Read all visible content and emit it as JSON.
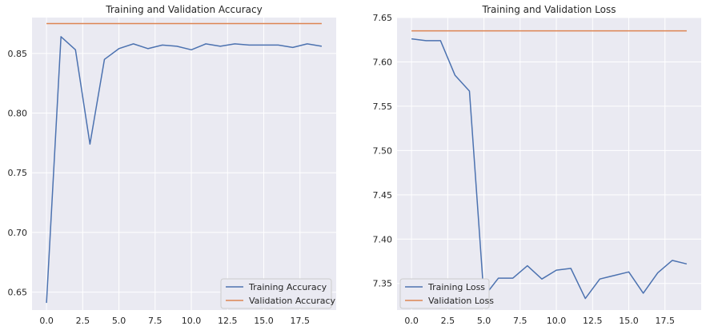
{
  "chart_data": [
    {
      "type": "line",
      "title": "Training and Validation Accuracy",
      "xlabel": "",
      "ylabel": "",
      "xlim": [
        -1,
        20
      ],
      "ylim": [
        0.635,
        0.88
      ],
      "xticks": [
        0,
        2.5,
        5,
        7.5,
        10,
        12.5,
        15,
        17.5
      ],
      "xtick_labels": [
        "0.0",
        "2.5",
        "5.0",
        "7.5",
        "10.0",
        "12.5",
        "15.0",
        "17.5"
      ],
      "yticks": [
        0.65,
        0.7,
        0.75,
        0.8,
        0.85
      ],
      "ytick_labels": [
        "0.65",
        "0.70",
        "0.75",
        "0.80",
        "0.85"
      ],
      "grid": true,
      "legend": "lower-right",
      "series": [
        {
          "name": "Training Accuracy",
          "color": "#4c72b0",
          "x": [
            0,
            1,
            2,
            3,
            4,
            5,
            6,
            7,
            8,
            9,
            10,
            11,
            12,
            13,
            14,
            15,
            16,
            17,
            18,
            19
          ],
          "y": [
            0.641,
            0.864,
            0.853,
            0.774,
            0.845,
            0.854,
            0.858,
            0.854,
            0.857,
            0.856,
            0.853,
            0.858,
            0.856,
            0.858,
            0.857,
            0.857,
            0.857,
            0.855,
            0.858,
            0.856
          ]
        },
        {
          "name": "Validation Accuracy",
          "color": "#dd8452",
          "x": [
            0,
            1,
            2,
            3,
            4,
            5,
            6,
            7,
            8,
            9,
            10,
            11,
            12,
            13,
            14,
            15,
            16,
            17,
            18,
            19
          ],
          "y": [
            0.875,
            0.875,
            0.875,
            0.875,
            0.875,
            0.875,
            0.875,
            0.875,
            0.875,
            0.875,
            0.875,
            0.875,
            0.875,
            0.875,
            0.875,
            0.875,
            0.875,
            0.875,
            0.875,
            0.875
          ]
        }
      ]
    },
    {
      "type": "line",
      "title": "Training and Validation Loss",
      "xlabel": "",
      "ylabel": "",
      "xlim": [
        -1,
        20
      ],
      "ylim": [
        7.32,
        7.65
      ],
      "xticks": [
        0,
        2.5,
        5,
        7.5,
        10,
        12.5,
        15,
        17.5
      ],
      "xtick_labels": [
        "0.0",
        "2.5",
        "5.0",
        "7.5",
        "10.0",
        "12.5",
        "15.0",
        "17.5"
      ],
      "yticks": [
        7.35,
        7.4,
        7.45,
        7.5,
        7.55,
        7.6,
        7.65
      ],
      "ytick_labels": [
        "7.35",
        "7.40",
        "7.45",
        "7.50",
        "7.55",
        "7.60",
        "7.65"
      ],
      "grid": true,
      "legend": "lower-left",
      "series": [
        {
          "name": "Training Loss",
          "color": "#4c72b0",
          "x": [
            0,
            1,
            2,
            3,
            4,
            5,
            6,
            7,
            8,
            9,
            10,
            11,
            12,
            13,
            14,
            15,
            16,
            17,
            18,
            19
          ],
          "y": [
            7.626,
            7.624,
            7.624,
            7.585,
            7.567,
            7.335,
            7.356,
            7.356,
            7.37,
            7.355,
            7.365,
            7.367,
            7.333,
            7.355,
            7.359,
            7.363,
            7.339,
            7.362,
            7.376,
            7.372
          ]
        },
        {
          "name": "Validation Loss",
          "color": "#dd8452",
          "x": [
            0,
            1,
            2,
            3,
            4,
            5,
            6,
            7,
            8,
            9,
            10,
            11,
            12,
            13,
            14,
            15,
            16,
            17,
            18,
            19
          ],
          "y": [
            7.635,
            7.635,
            7.635,
            7.635,
            7.635,
            7.635,
            7.635,
            7.635,
            7.635,
            7.635,
            7.635,
            7.635,
            7.635,
            7.635,
            7.635,
            7.635,
            7.635,
            7.635,
            7.635,
            7.635
          ]
        }
      ]
    }
  ]
}
